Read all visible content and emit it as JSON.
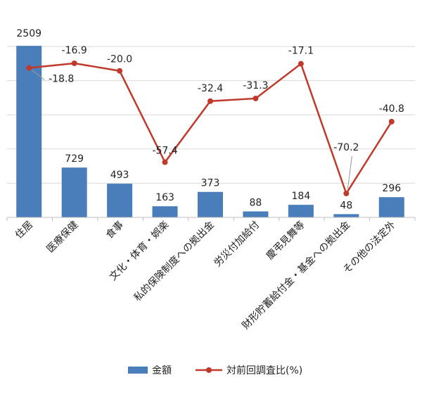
{
  "chart_data": {
    "type": "bar+line",
    "categories": [
      "住居",
      "医療保健",
      "食事",
      "文化・体育・娯楽",
      "私的保険制度への拠出金",
      "労災付加給付",
      "慶弔見舞等",
      "財形貯蓄給付金・基金への拠出金",
      "その他の法定外"
    ],
    "series": [
      {
        "name": "金額",
        "kind": "bar",
        "color": "#4a7ebb",
        "values": [
          2509,
          729,
          493,
          163,
          373,
          88,
          184,
          48,
          296
        ]
      },
      {
        "name": "対前回調査比(%)",
        "kind": "line",
        "color": "#c0392b",
        "values": [
          -18.8,
          -16.9,
          -20.0,
          -57.4,
          -32.4,
          -31.3,
          -17.1,
          -70.2,
          -40.8
        ]
      }
    ],
    "bar_labels": [
      "2509",
      "729",
      "493",
      "163",
      "373",
      "88",
      "184",
      "48",
      "296"
    ],
    "line_labels": [
      "-18.8",
      "-16.9",
      "-20.0",
      "-57.4",
      "-32.4",
      "-31.3",
      "-17.1",
      "-70.2",
      "-40.8"
    ],
    "ylim_bar": [
      0,
      2500
    ],
    "ylim_line": [
      -80,
      -10
    ],
    "grid": true,
    "legend_position": "bottom",
    "title": "",
    "xlabel": "",
    "ylabel": ""
  }
}
